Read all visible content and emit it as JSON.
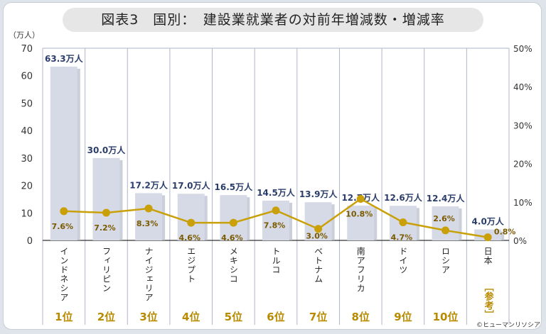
{
  "title": "図表3　国別：　建設業就業者の対前年増減数・増減率",
  "credit": "©ヒューマンリソシア",
  "chart_data": {
    "type": "bar+line",
    "y_left_unit": "（万人）",
    "y_left_ticks": [
      "0",
      "10",
      "20",
      "30",
      "40",
      "50",
      "60",
      "70"
    ],
    "y_left_range": [
      0,
      70
    ],
    "y_right_ticks": [
      "0%",
      "10%",
      "20%",
      "30%",
      "40%",
      "50%"
    ],
    "y_right_range": [
      0,
      50
    ],
    "categories": [
      "インドネシア",
      "フィリピン",
      "ナイジェリア",
      "エジプト",
      "メキシコ",
      "トルコ",
      "ベトナム",
      "南アフリカ",
      "ドイツ",
      "ロシア",
      "日本"
    ],
    "ranks": [
      "1位",
      "2位",
      "3位",
      "4位",
      "5位",
      "6位",
      "7位",
      "8位",
      "9位",
      "10位",
      "［参考］"
    ],
    "bar_series": {
      "values": [
        63.3,
        30.0,
        17.2,
        17.0,
        16.5,
        14.5,
        13.9,
        12.7,
        12.6,
        12.4,
        4.0
      ],
      "labels": [
        "63.3万人",
        "30.0万人",
        "17.2万人",
        "17.0万人",
        "16.5万人",
        "14.5万人",
        "13.9万人",
        "12.7万人",
        "12.6万人",
        "12.4万人",
        "4.0万人"
      ]
    },
    "line_series": {
      "values": [
        7.6,
        7.2,
        8.3,
        4.6,
        4.6,
        7.8,
        3.0,
        10.8,
        4.7,
        2.6,
        0.8
      ],
      "labels": [
        "7.6%",
        "7.2%",
        "8.3%",
        "4.6%",
        "4.6%",
        "7.8%",
        "3.0%",
        "10.8%",
        "4.7%",
        "2.6%",
        "0.8%"
      ]
    },
    "colors": {
      "bar": "#d6dae6",
      "bar_shade": "#b4bac9",
      "line": "#c9a008",
      "bar_label": "#2b3d6b",
      "line_label": "#7a5a00",
      "rank": "#b88a00",
      "grid": "#aeb6c8"
    }
  }
}
